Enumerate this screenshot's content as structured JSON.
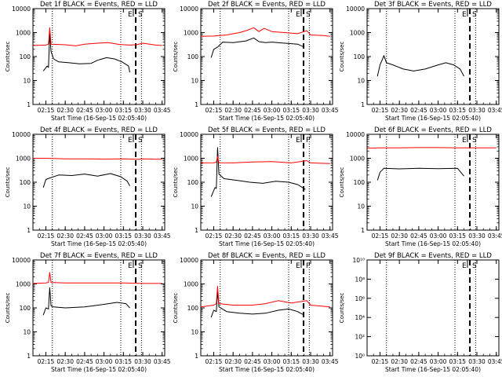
{
  "xlabel": "Start Time (16-Sep-15 02:05:40)",
  "ylabel": "Counts/sec",
  "x_ticks": [
    "02:15",
    "02:30",
    "02:45",
    "03:00",
    "03:15",
    "03:30",
    "03:45"
  ],
  "colors": {
    "events": "#000000",
    "lld": "#ff0000",
    "axes": "#000000",
    "background": "#ffffff"
  },
  "chart_data": [
    {
      "type": "line",
      "title": "Det 1f BLACK = Events, RED = LLD",
      "marker_labels": [
        "E",
        "S"
      ],
      "yscale": "log",
      "ylim": [
        1,
        10000
      ],
      "y_ticks": [
        "1",
        "10",
        "100",
        "1000",
        "10000"
      ],
      "series": [
        {
          "color": "black",
          "x": [
            "02:13",
            "02:16",
            "02:17",
            "02:18",
            "02:19",
            "02:21",
            "02:25",
            "02:33",
            "02:41",
            "02:50",
            "02:55",
            "03:02",
            "03:08",
            "03:14",
            "03:19",
            "03:20"
          ],
          "y": [
            25,
            40,
            35,
            900,
            160,
            80,
            60,
            55,
            50,
            52,
            70,
            90,
            80,
            60,
            40,
            22
          ]
        },
        {
          "color": "red",
          "x": [
            "02:05",
            "02:15",
            "02:17",
            "02:18",
            "02:19",
            "02:30",
            "02:38",
            "02:45",
            "02:55",
            "03:03",
            "03:12",
            "03:20",
            "03:25",
            "03:30",
            "03:40",
            "03:45"
          ],
          "y": [
            290,
            300,
            330,
            1600,
            330,
            310,
            280,
            330,
            360,
            380,
            320,
            300,
            310,
            360,
            300,
            290
          ]
        }
      ]
    },
    {
      "type": "line",
      "title": "Det 2f BLACK = Events, RED = LLD",
      "marker_labels": [
        "E",
        "S"
      ],
      "yscale": "log",
      "ylim": [
        1,
        10000
      ],
      "y_ticks": [
        "1",
        "10",
        "100",
        "1000",
        "10000"
      ],
      "series": [
        {
          "color": "black",
          "x": [
            "02:13",
            "02:15",
            "02:18",
            "02:22",
            "02:30",
            "02:40",
            "02:46",
            "02:50",
            "02:55",
            "03:00",
            "03:10",
            "03:20",
            "03:25"
          ],
          "y": [
            90,
            200,
            250,
            400,
            380,
            450,
            600,
            420,
            380,
            400,
            360,
            330,
            250
          ]
        },
        {
          "color": "red",
          "x": [
            "02:05",
            "02:15",
            "02:25",
            "02:35",
            "02:40",
            "02:46",
            "02:50",
            "02:54",
            "03:00",
            "03:10",
            "03:20",
            "03:27",
            "03:30",
            "03:40",
            "03:45"
          ],
          "y": [
            700,
            720,
            800,
            1000,
            1200,
            1600,
            1100,
            1500,
            1100,
            1000,
            900,
            1200,
            800,
            750,
            700
          ]
        }
      ]
    },
    {
      "type": "line",
      "title": "Det 3f BLACK = Events, RED = LLD",
      "marker_labels": [
        "E",
        "S"
      ],
      "yscale": "log",
      "ylim": [
        1,
        10000
      ],
      "y_ticks": [
        "1",
        "10",
        "100",
        "1000",
        "10000"
      ],
      "series": [
        {
          "color": "black",
          "x": [
            "02:13",
            "02:15",
            "02:17",
            "02:18",
            "02:20",
            "02:25",
            "02:33",
            "02:41",
            "02:50",
            "03:00",
            "03:06",
            "03:12",
            "03:17",
            "03:20"
          ],
          "y": [
            15,
            45,
            80,
            110,
            55,
            45,
            30,
            25,
            30,
            45,
            55,
            45,
            30,
            15
          ]
        }
      ]
    },
    {
      "type": "line",
      "title": "Det 4f BLACK = Events, RED = LLD",
      "marker_labels": [
        "E",
        "S"
      ],
      "yscale": "log",
      "ylim": [
        1,
        10000
      ],
      "y_ticks": [
        "1",
        "10",
        "100",
        "1000",
        "10000"
      ],
      "series": [
        {
          "color": "black",
          "x": [
            "02:13",
            "02:15",
            "02:18",
            "02:25",
            "02:35",
            "02:45",
            "02:55",
            "03:05",
            "03:13",
            "03:18",
            "03:20"
          ],
          "y": [
            60,
            130,
            150,
            200,
            190,
            220,
            180,
            230,
            170,
            110,
            70
          ]
        },
        {
          "color": "red",
          "x": [
            "02:05",
            "02:15",
            "02:30",
            "02:45",
            "03:00",
            "03:15",
            "03:27",
            "03:30",
            "03:45"
          ],
          "y": [
            1000,
            1000,
            950,
            950,
            920,
            950,
            900,
            950,
            900
          ]
        }
      ]
    },
    {
      "type": "line",
      "title": "Det 5f BLACK = Events, RED = LLD",
      "marker_labels": [
        "E",
        "P"
      ],
      "yscale": "log",
      "ylim": [
        1,
        10000
      ],
      "y_ticks": [
        "1",
        "10",
        "100",
        "1000",
        "10000"
      ],
      "series": [
        {
          "color": "black",
          "x": [
            "02:13",
            "02:16",
            "02:17",
            "02:18",
            "02:19",
            "02:23",
            "02:33",
            "02:43",
            "02:53",
            "03:03",
            "03:13",
            "03:20",
            "03:26"
          ],
          "y": [
            25,
            60,
            55,
            2800,
            220,
            140,
            120,
            100,
            90,
            110,
            100,
            80,
            50
          ]
        },
        {
          "color": "red",
          "x": [
            "02:05",
            "02:15",
            "02:17",
            "02:18",
            "02:19",
            "02:30",
            "02:45",
            "03:00",
            "03:15",
            "03:27",
            "03:30",
            "03:45"
          ],
          "y": [
            640,
            650,
            680,
            1200,
            650,
            640,
            700,
            730,
            640,
            800,
            640,
            600
          ]
        }
      ]
    },
    {
      "type": "line",
      "title": "Det 6f BLACK = Events, RED = LLD",
      "marker_labels": [
        "E",
        "S"
      ],
      "yscale": "log",
      "ylim": [
        1,
        10000
      ],
      "y_ticks": [
        "1",
        "10",
        "100",
        "1000",
        "10000"
      ],
      "series": [
        {
          "color": "black",
          "x": [
            "02:13",
            "02:15",
            "02:18",
            "02:30",
            "02:45",
            "03:00",
            "03:15",
            "03:20"
          ],
          "y": [
            120,
            260,
            380,
            360,
            380,
            370,
            380,
            180
          ]
        },
        {
          "color": "red",
          "x": [
            "02:05",
            "02:15",
            "02:30",
            "02:45",
            "03:00",
            "03:15",
            "03:30",
            "03:45"
          ],
          "y": [
            2600,
            2700,
            2700,
            2800,
            2800,
            2700,
            2700,
            2700
          ]
        }
      ]
    },
    {
      "type": "line",
      "title": "Det 7f BLACK = Events, RED = LLD",
      "marker_labels": [
        "E",
        "S"
      ],
      "yscale": "log",
      "ylim": [
        1,
        10000
      ],
      "y_ticks": [
        "1",
        "10",
        "100",
        "1000",
        "10000"
      ],
      "series": [
        {
          "color": "black",
          "x": [
            "02:13",
            "02:15",
            "02:17",
            "02:18",
            "02:19",
            "02:21",
            "02:30",
            "02:45",
            "03:00",
            "03:10",
            "03:17",
            "03:20"
          ],
          "y": [
            50,
            100,
            90,
            700,
            120,
            110,
            100,
            110,
            140,
            170,
            150,
            100
          ]
        },
        {
          "color": "red",
          "x": [
            "02:05",
            "02:15",
            "02:17",
            "02:18",
            "02:19",
            "02:30",
            "02:45",
            "03:00",
            "03:15",
            "03:30",
            "03:45"
          ],
          "y": [
            1050,
            1100,
            1150,
            3000,
            1150,
            1100,
            1100,
            1100,
            1100,
            1050,
            1050
          ]
        }
      ]
    },
    {
      "type": "line",
      "title": "Det 8f BLACK = Events, RED = LLD",
      "marker_labels": [
        "E",
        "P"
      ],
      "yscale": "log",
      "ylim": [
        1,
        10000
      ],
      "y_ticks": [
        "1",
        "10",
        "100",
        "1000",
        "10000"
      ],
      "series": [
        {
          "color": "black",
          "x": [
            "02:13",
            "02:15",
            "02:17",
            "02:18",
            "02:19",
            "02:25",
            "02:35",
            "02:45",
            "02:55",
            "03:05",
            "03:13",
            "03:20",
            "03:25"
          ],
          "y": [
            40,
            80,
            70,
            500,
            110,
            70,
            60,
            55,
            60,
            80,
            90,
            70,
            50
          ]
        },
        {
          "color": "red",
          "x": [
            "02:05",
            "02:15",
            "02:17",
            "02:18",
            "02:19",
            "02:30",
            "02:45",
            "02:55",
            "03:05",
            "03:15",
            "03:27",
            "03:30",
            "03:45"
          ],
          "y": [
            110,
            130,
            150,
            800,
            150,
            130,
            130,
            150,
            200,
            160,
            200,
            130,
            110
          ]
        }
      ]
    },
    {
      "type": "line",
      "title": "Det 9f BLACK = Events, RED = LLD",
      "marker_labels": [
        "E",
        "S"
      ],
      "yscale": "log",
      "ylim": [
        1,
        10000000000
      ],
      "y_ticks": [
        "10⁰",
        "10²",
        "10⁴",
        "10⁶",
        "10⁸",
        "10¹⁰"
      ],
      "series": []
    }
  ]
}
